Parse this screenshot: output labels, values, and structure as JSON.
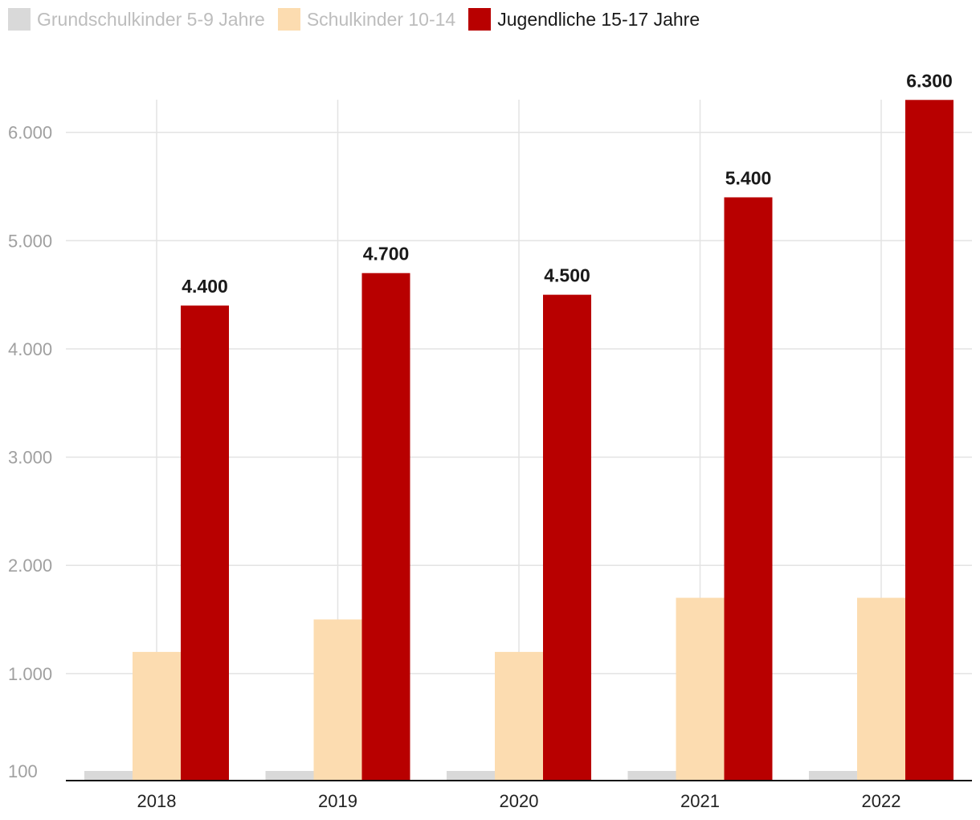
{
  "chart_data": {
    "type": "bar",
    "categories": [
      "2018",
      "2019",
      "2020",
      "2021",
      "2022"
    ],
    "series": [
      {
        "name": "Grundschulkinder 5-9 Jahre",
        "values": [
          100,
          100,
          100,
          100,
          100
        ],
        "color": "#d9d9d9",
        "legend_text_color": "#bdbdbd"
      },
      {
        "name": "Schulkinder 10-14",
        "values": [
          1200,
          1500,
          1200,
          1700,
          1700
        ],
        "color": "#fcdcb0",
        "legend_text_color": "#bdbdbd"
      },
      {
        "name": "Jugendliche 15-17 Jahre",
        "values": [
          4400,
          4700,
          4500,
          5400,
          6300
        ],
        "color": "#b80000",
        "legend_text_color": "#1a1a1a"
      }
    ],
    "data_labels": [
      "4.400",
      "4.700",
      "4.500",
      "5.400",
      "6.300"
    ],
    "y_ticks": [
      {
        "value": 100,
        "label": "100"
      },
      {
        "value": 1000,
        "label": "1.000"
      },
      {
        "value": 2000,
        "label": "2.000"
      },
      {
        "value": 3000,
        "label": "3.000"
      },
      {
        "value": 4000,
        "label": "4.000"
      },
      {
        "value": 5000,
        "label": "5.000"
      },
      {
        "value": 6000,
        "label": "6.000"
      }
    ],
    "ylim": [
      0,
      6300
    ],
    "grid": true,
    "legend": "top-left",
    "title": "",
    "xlabel": "",
    "ylabel": ""
  }
}
